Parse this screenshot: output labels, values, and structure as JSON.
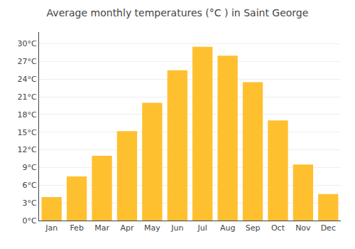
{
  "chart_data": {
    "type": "bar",
    "title": "Average monthly temperatures (°C ) in Saint George",
    "categories": [
      "Jan",
      "Feb",
      "Mar",
      "Apr",
      "May",
      "Jun",
      "Jul",
      "Aug",
      "Sep",
      "Oct",
      "Nov",
      "Dec"
    ],
    "values": [
      4.0,
      7.5,
      11.0,
      15.2,
      20.0,
      25.5,
      29.5,
      28.0,
      23.5,
      17.0,
      9.5,
      4.5
    ],
    "color": "#FFC030",
    "ylim": [
      0,
      32
    ],
    "yticks": [
      {
        "value": 0,
        "label": "0°C"
      },
      {
        "value": 3,
        "label": "3°C"
      },
      {
        "value": 6,
        "label": "6°C"
      },
      {
        "value": 9,
        "label": "9°C"
      },
      {
        "value": 12,
        "label": "12°C"
      },
      {
        "value": 15,
        "label": "15°C"
      },
      {
        "value": 18,
        "label": "18°C"
      },
      {
        "value": 21,
        "label": "21°C"
      },
      {
        "value": 24,
        "label": "24°C"
      },
      {
        "value": 27,
        "label": "27°C"
      },
      {
        "value": 30,
        "label": "30°C"
      }
    ],
    "grid": true
  }
}
